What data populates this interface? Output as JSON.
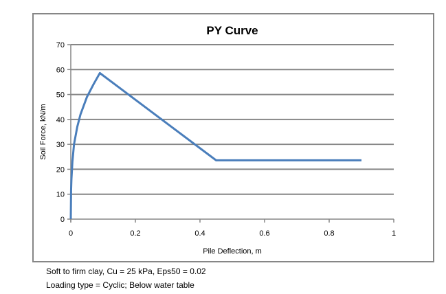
{
  "chart_data": {
    "type": "line",
    "title": "PY Curve",
    "xlabel": "Pile Deflection, m",
    "ylabel": "Soil Force, kN/m",
    "xlim": [
      0,
      1
    ],
    "ylim": [
      0,
      70
    ],
    "xticks": [
      "0",
      "0.2",
      "0.4",
      "0.6",
      "0.8",
      "1"
    ],
    "yticks": [
      "0",
      "10",
      "20",
      "30",
      "40",
      "50",
      "60",
      "70"
    ],
    "grid": "horizontal",
    "line_color": "#4a7ebb",
    "series": [
      {
        "x": [
          0,
          0.001,
          0.002,
          0.005,
          0.01,
          0.02,
          0.03,
          0.05,
          0.07,
          0.09,
          0.45,
          0.9
        ],
        "y": [
          0,
          12,
          16,
          23,
          30,
          37,
          42,
          49,
          54,
          58.6,
          23.6,
          23.6
        ]
      }
    ]
  },
  "captions": [
    "Soft to firm clay, Cu = 25 kPa, Eps50 = 0.02",
    "Loading type = Cyclic;  Below water table"
  ]
}
